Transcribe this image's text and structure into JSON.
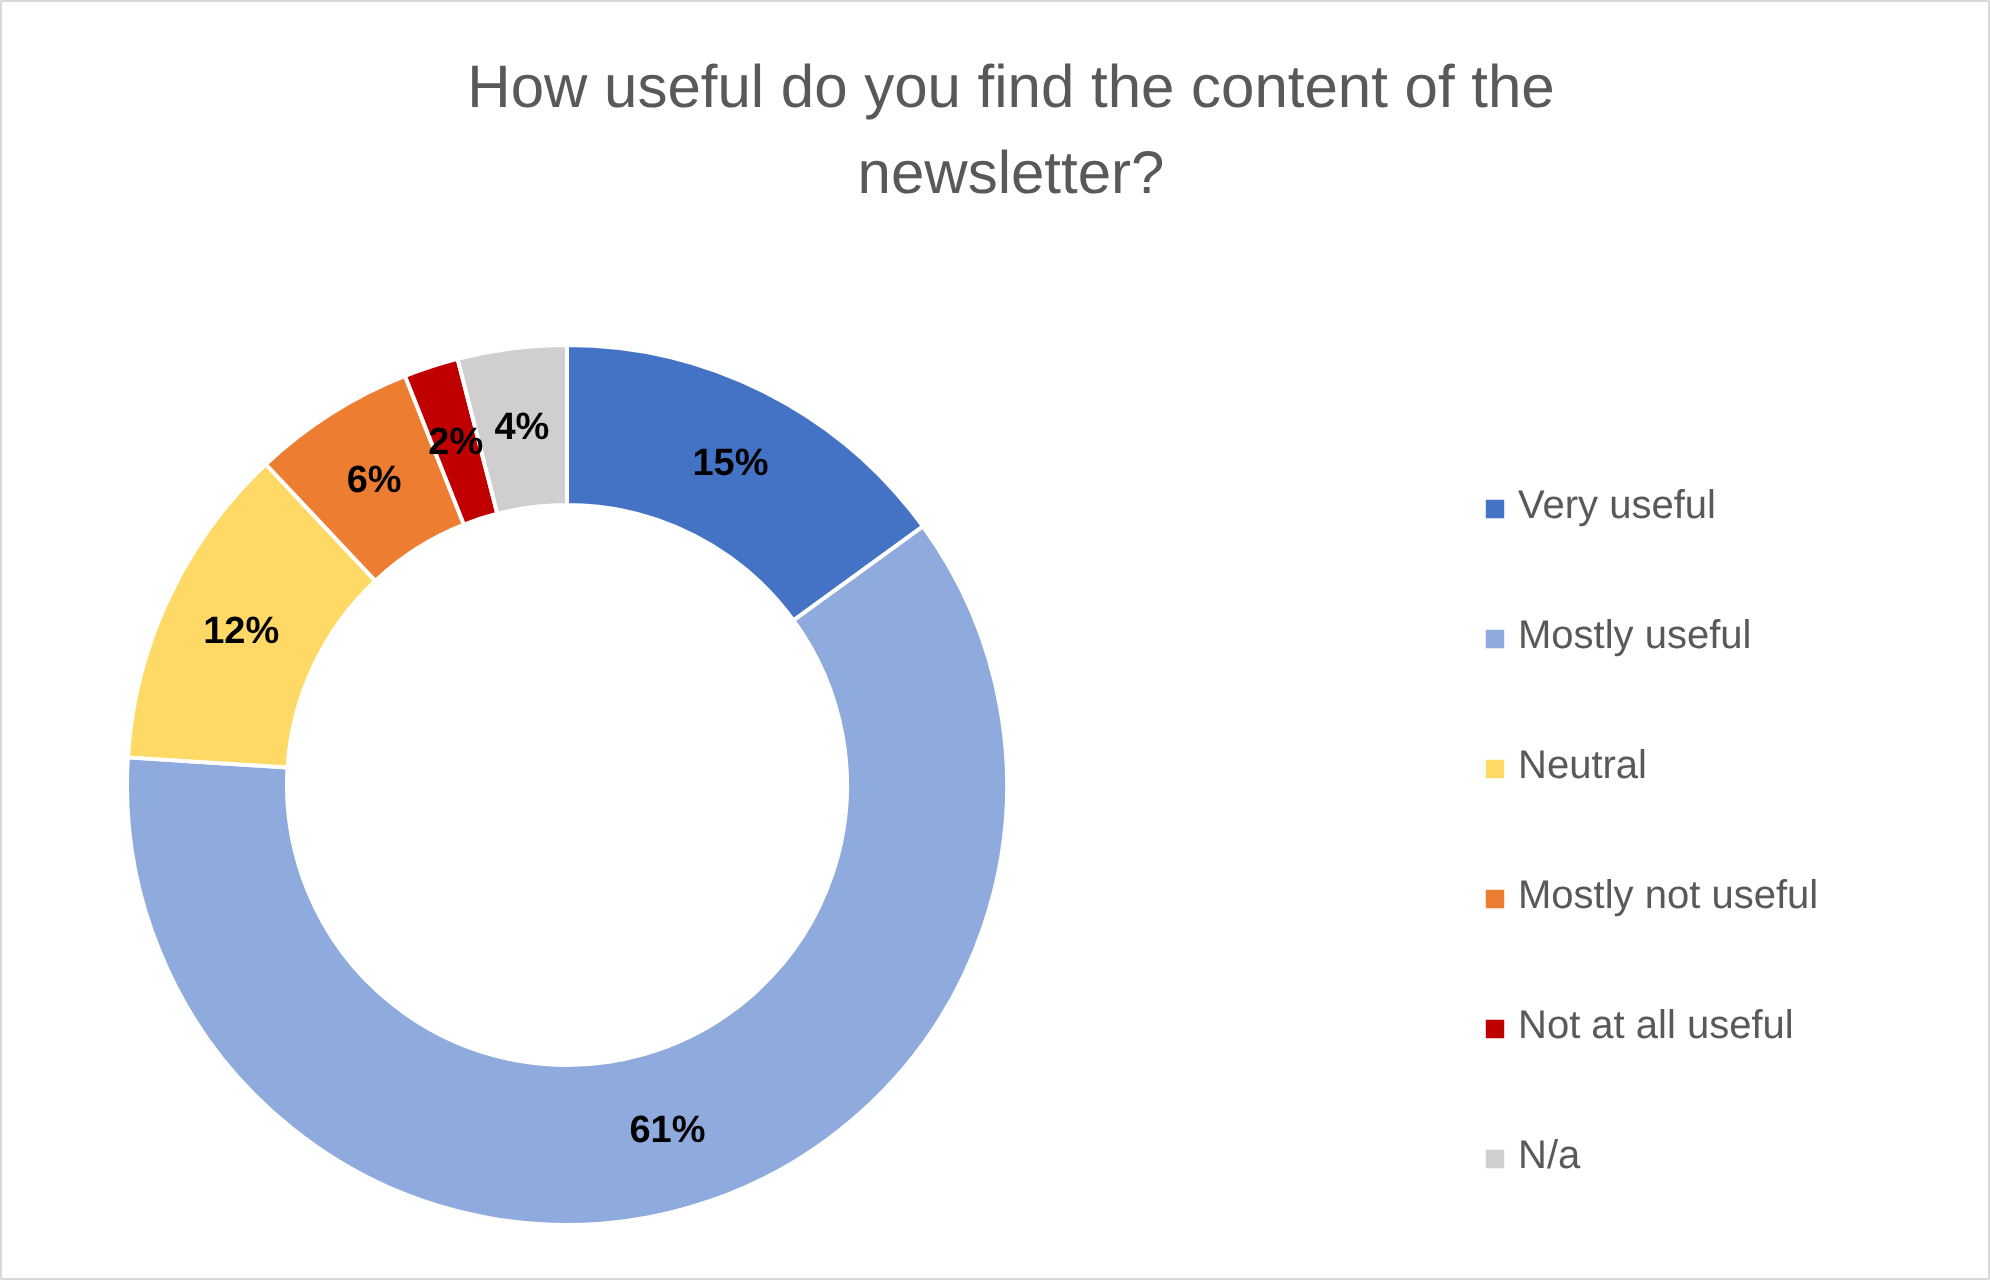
{
  "chart_data": {
    "type": "donut",
    "title": "How useful do you find the content of the newsletter?",
    "categories": [
      "Very useful",
      "Mostly useful",
      "Neutral",
      "Mostly not useful",
      "Not at all useful",
      "N/a"
    ],
    "values": [
      15,
      61,
      12,
      6,
      2,
      4
    ],
    "colors": [
      "#4472c4",
      "#8faadc",
      "#ffd966",
      "#ed7d31",
      "#c00000",
      "#d0cece"
    ],
    "value_labels": [
      "15%",
      "61%",
      "12%",
      "6%",
      "2%",
      "4%"
    ],
    "legend": "right"
  }
}
